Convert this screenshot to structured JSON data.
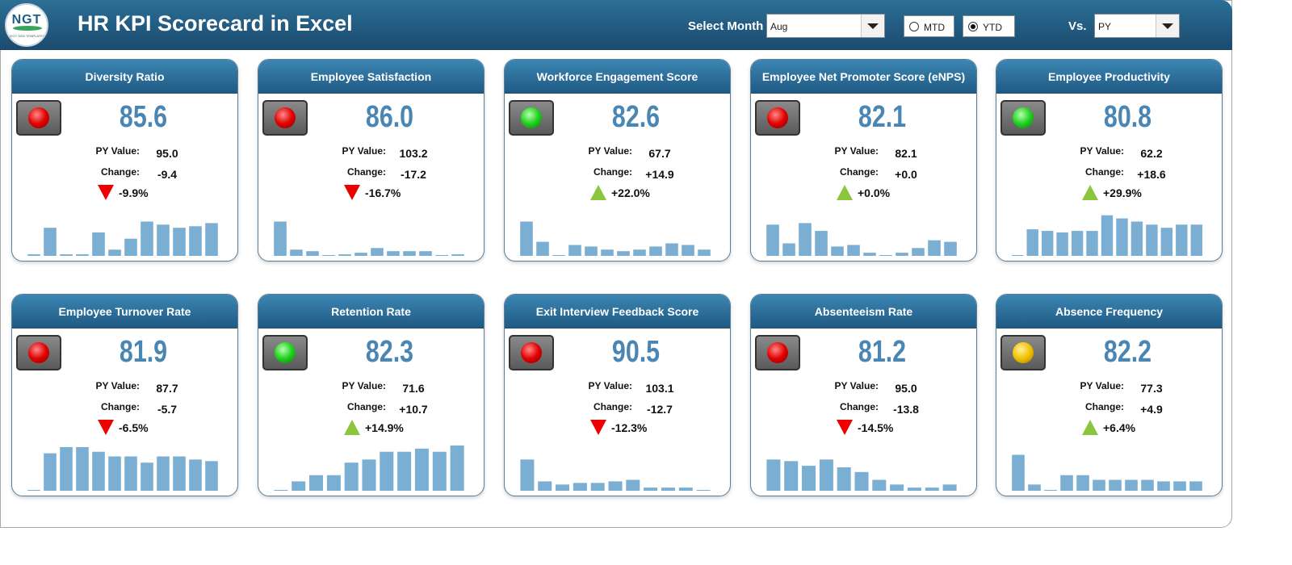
{
  "header": {
    "title": "HR KPI Scorecard in Excel",
    "logo_text": "NGT",
    "logo_subtext": "NEXT GEN TEMPLATES",
    "select_month_label": "Select Month",
    "month_value": "Aug",
    "mtd_label": "MTD",
    "ytd_label": "YTD",
    "selected_mode": "YTD",
    "vs_label": "Vs.",
    "vs_value": "PY"
  },
  "labels": {
    "py": "PY Value:",
    "change": "Change:"
  },
  "cards": [
    {
      "title": "Diversity Ratio",
      "value": "85.6",
      "py": "95.0",
      "change": "-9.4",
      "pct": "-9.9%",
      "dir": "down",
      "light": "red",
      "bars": [
        1,
        18,
        1,
        1,
        15,
        4,
        11,
        22,
        20,
        18,
        19,
        21
      ]
    },
    {
      "title": "Employee Satisfaction",
      "value": "86.0",
      "py": "103.2",
      "change": "-17.2",
      "pct": "-16.7%",
      "dir": "down",
      "light": "red",
      "bars": [
        22,
        4,
        3,
        0,
        1,
        2,
        5,
        3,
        3,
        3,
        0,
        1
      ]
    },
    {
      "title": "Workforce Engagement Score",
      "value": "82.6",
      "py": "67.7",
      "change": "+14.9",
      "pct": "+22.0%",
      "dir": "up",
      "light": "green",
      "bars": [
        22,
        9,
        0,
        7,
        6,
        4,
        3,
        4,
        6,
        8,
        7,
        4
      ]
    },
    {
      "title": "Employee Net Promoter Score (eNPS)",
      "value": "82.1",
      "py": "82.1",
      "change": "+0.0",
      "pct": "+0.0%",
      "dir": "up",
      "light": "red",
      "bars": [
        20,
        8,
        21,
        16,
        6,
        7,
        2,
        0,
        2,
        5,
        10,
        9
      ]
    },
    {
      "title": "Employee Productivity",
      "value": "80.8",
      "py": "62.2",
      "change": "+18.6",
      "pct": "+29.9%",
      "dir": "up",
      "light": "green",
      "bars": [
        0,
        17,
        16,
        15,
        16,
        16,
        26,
        24,
        22,
        20,
        18,
        20,
        20
      ]
    },
    {
      "title": "Employee Turnover Rate",
      "value": "81.9",
      "py": "87.7",
      "change": "-5.7",
      "pct": "-6.5%",
      "dir": "down",
      "light": "red",
      "bars": [
        0,
        24,
        28,
        28,
        25,
        22,
        22,
        18,
        22,
        22,
        20,
        19
      ]
    },
    {
      "title": "Retention Rate",
      "value": "82.3",
      "py": "71.6",
      "change": "+10.7",
      "pct": "+14.9%",
      "dir": "up",
      "light": "green",
      "bars": [
        0,
        6,
        10,
        10,
        18,
        20,
        25,
        25,
        27,
        25,
        29
      ]
    },
    {
      "title": "Exit Interview Feedback Score",
      "value": "90.5",
      "py": "103.1",
      "change": "-12.7",
      "pct": "-12.3%",
      "dir": "down",
      "light": "red",
      "bars": [
        20,
        6,
        4,
        5,
        5,
        6,
        7,
        2,
        2,
        2,
        0
      ]
    },
    {
      "title": "Absenteeism Rate",
      "value": "81.2",
      "py": "95.0",
      "change": "-13.8",
      "pct": "-14.5%",
      "dir": "down",
      "light": "red",
      "bars": [
        20,
        19,
        16,
        20,
        15,
        12,
        7,
        4,
        2,
        2,
        4
      ]
    },
    {
      "title": "Absence Frequency",
      "value": "82.2",
      "py": "77.3",
      "change": "+4.9",
      "pct": "+6.4%",
      "dir": "up",
      "light": "yellow",
      "bars": [
        23,
        4,
        0,
        10,
        10,
        7,
        7,
        7,
        7,
        6,
        6,
        6
      ]
    }
  ]
}
